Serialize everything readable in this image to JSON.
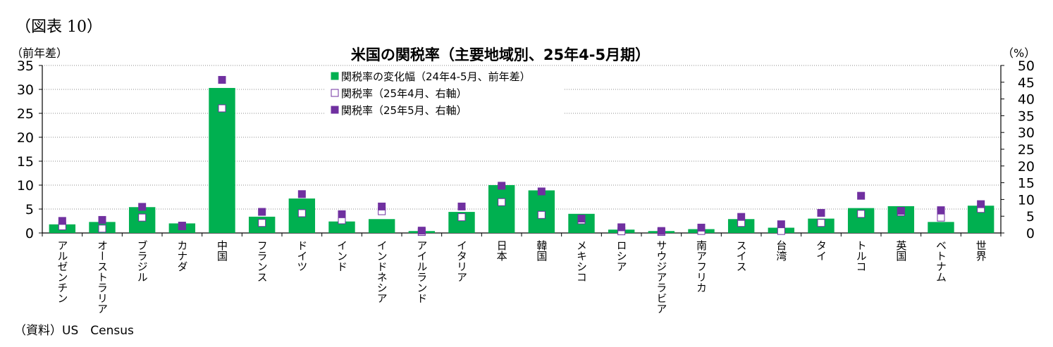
{
  "figure_label": "（図表 10）",
  "source": "（資料）US　Census",
  "chart_data": {
    "type": "bar",
    "title": "米国の関税率（主要地域別、25年4-5月期）",
    "ylabel_left": "（前年差）",
    "ylabel_right": "（%）",
    "ylim_left": [
      0,
      35
    ],
    "ylim_right": [
      0,
      50
    ],
    "yticks_left": [
      "0",
      "5",
      "10",
      "15",
      "20",
      "25",
      "30",
      "35"
    ],
    "yticks_right": [
      "0",
      "5",
      "10",
      "15",
      "20",
      "25",
      "30",
      "35",
      "40",
      "45",
      "50"
    ],
    "grid": true,
    "legend_position": "top-center",
    "categories": [
      "アルゼンチン",
      "オーストラリア",
      "ブラジル",
      "カナダ",
      "中国",
      "フランス",
      "ドイツ",
      "インド",
      "インドネシア",
      "アイルランド",
      "イタリア",
      "日本",
      "韓国",
      "メキシコ",
      "ロシア",
      "サウジアラビア",
      "南アフリカ",
      "スイス",
      "台湾",
      "タイ",
      "トルコ",
      "英国",
      "ベトナム",
      "世界"
    ],
    "series": [
      {
        "name": "関税率の変化幅（24年4-5月、前年差）",
        "axis": "left",
        "kind": "bar",
        "color": "#00b050",
        "values": [
          1.8,
          2.3,
          5.4,
          2.0,
          30.3,
          3.4,
          7.2,
          2.4,
          2.9,
          0.4,
          4.4,
          10.0,
          8.9,
          4.0,
          0.7,
          0.4,
          0.8,
          2.9,
          1.1,
          3.0,
          5.2,
          5.6,
          2.3,
          5.7
        ]
      },
      {
        "name": "関税率（25年4月、右軸）",
        "axis": "right",
        "kind": "marker",
        "color": "#7030a0",
        "fill": "#ffffff",
        "values": [
          2.0,
          1.3,
          4.6,
          2.0,
          37.2,
          3.0,
          5.9,
          3.8,
          6.5,
          0.3,
          4.7,
          9.2,
          5.4,
          3.8,
          0.5,
          0.3,
          0.6,
          3.0,
          0.6,
          3.0,
          5.7,
          6.2,
          4.6,
          7.2
        ]
      },
      {
        "name": "関税率（25年5月、右軸）",
        "axis": "right",
        "kind": "marker",
        "color": "#7030a0",
        "fill": "#7030a0",
        "values": [
          3.6,
          3.9,
          7.8,
          2.2,
          45.7,
          6.3,
          11.6,
          5.6,
          7.9,
          0.7,
          7.9,
          14.1,
          12.4,
          4.3,
          1.7,
          0.6,
          1.6,
          4.8,
          2.6,
          6.0,
          11.1,
          6.6,
          6.8,
          8.6
        ]
      }
    ]
  }
}
